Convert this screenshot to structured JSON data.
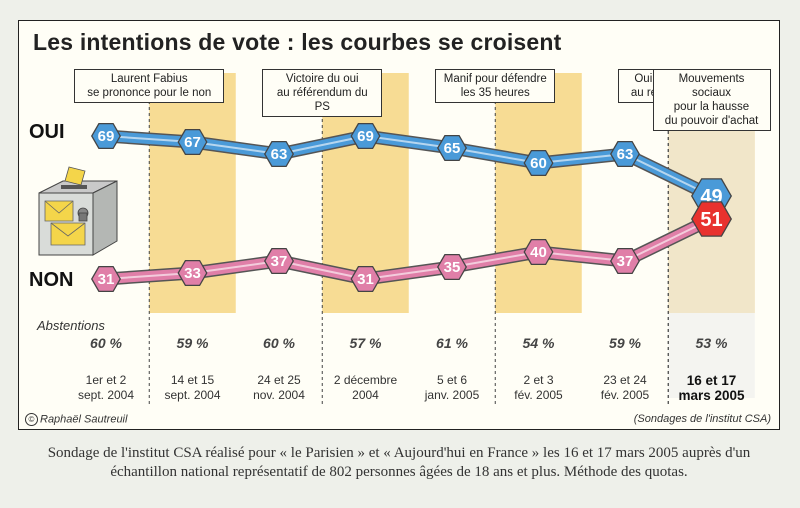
{
  "title": "Les intentions de vote : les courbes se croisent",
  "events": [
    {
      "lines": [
        "Laurent Fabius",
        "se prononce pour le non"
      ]
    },
    {
      "lines": [
        "Victoire du oui",
        "au référendum du PS"
      ]
    },
    {
      "lines": [
        "Manif pour défendre",
        "les 35 heures"
      ]
    },
    {
      "lines": [
        "Oui espagnol",
        "au référendum"
      ]
    },
    {
      "lines": [
        "Mouvements sociaux",
        "pour la hausse",
        "du pouvoir d'achat"
      ]
    }
  ],
  "abstentions_label": "Abstentions",
  "credit_left": "Raphaël Sautreuil",
  "credit_right": "(Sondages de l'institut CSA)",
  "caption": "Sondage de l'institut CSA réalisé pour « le Parisien » et « Aujourd'hui en France » les 16 et 17 mars 2005 auprès d'un échantillon national représentatif de 802 personnes âgées de 18 ans et plus. Méthode des quotas.",
  "colors": {
    "oui": "#4a9ad8",
    "non": "#e07fa8",
    "non_last": "#e8322e",
    "column_band": "#f7dc94",
    "frame_bg": "#fffef6"
  },
  "chart_data": {
    "type": "line",
    "title": "Les intentions de vote : les courbes se croisent",
    "x": [
      "1er et 2 sept. 2004",
      "14 et 15 sept. 2004",
      "24 et 25 nov. 2004",
      "2 décembre 2004",
      "5 et 6 janv. 2005",
      "2 et 3 fév. 2005",
      "23 et 24 fév. 2005",
      "16 et 17 mars 2005"
    ],
    "x_lines": [
      [
        "1er et 2",
        "sept. 2004"
      ],
      [
        "14 et 15",
        "sept. 2004"
      ],
      [
        "24 et 25",
        "nov. 2004"
      ],
      [
        "2 décembre",
        "2004"
      ],
      [
        "5 et 6",
        "janv. 2005"
      ],
      [
        "2 et 3",
        "fév. 2005"
      ],
      [
        "23 et 24",
        "fév. 2005"
      ],
      [
        "16 et 17",
        "mars 2005"
      ]
    ],
    "series": [
      {
        "name": "OUI",
        "values": [
          69,
          67,
          63,
          69,
          65,
          60,
          63,
          49
        ]
      },
      {
        "name": "NON",
        "values": [
          31,
          33,
          37,
          31,
          35,
          40,
          37,
          51
        ]
      }
    ],
    "abstentions": [
      "60 %",
      "59 %",
      "60 %",
      "57 %",
      "61 %",
      "54 %",
      "59 %",
      "53 %"
    ],
    "event_positions": [
      1,
      3,
      5,
      7,
      8
    ],
    "grid": false
  }
}
